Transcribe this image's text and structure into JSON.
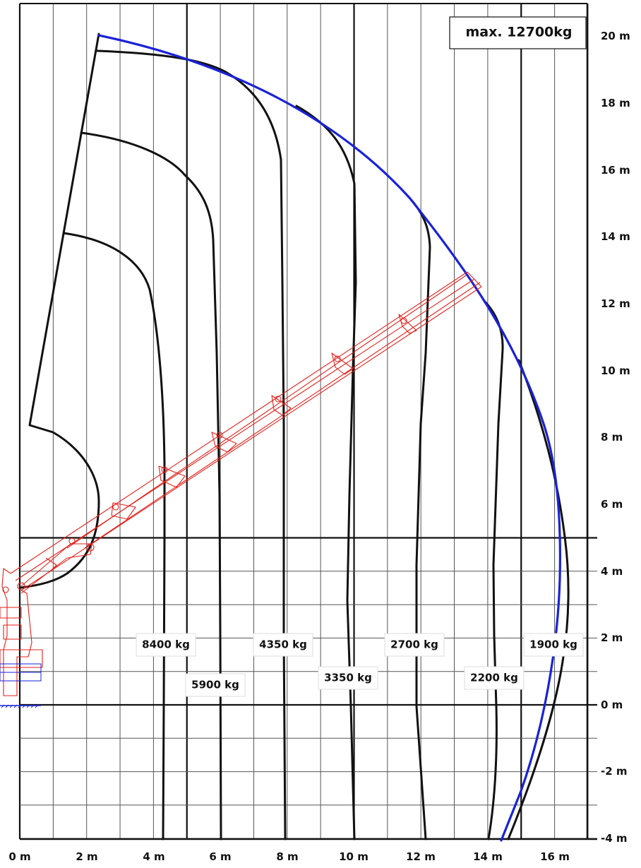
{
  "max_capacity": "max. 12700kg",
  "x_axis_labels": [
    "0 m",
    "2 m",
    "4 m",
    "6 m",
    "8 m",
    "10 m",
    "12 m",
    "14 m",
    "16 m"
  ],
  "y_axis_labels": [
    "20 m",
    "18 m",
    "16 m",
    "14 m",
    "12 m",
    "10 m",
    "8 m",
    "6 m",
    "4 m",
    "2 m",
    "0 m",
    "-2 m",
    "-4 m"
  ],
  "capacity_labels": [
    {
      "text": "8400 kg"
    },
    {
      "text": "5900 kg"
    },
    {
      "text": "4350 kg"
    },
    {
      "text": "3350 kg"
    },
    {
      "text": "2700 kg"
    },
    {
      "text": "2200 kg"
    },
    {
      "text": "1900 kg"
    }
  ],
  "colors": {
    "envelope": "#111111",
    "reach_max": "#1a22d8",
    "crane": "#e3201b",
    "grid_major": "#111111",
    "grid_minor": "#777777",
    "base": "#1a22d8"
  }
}
